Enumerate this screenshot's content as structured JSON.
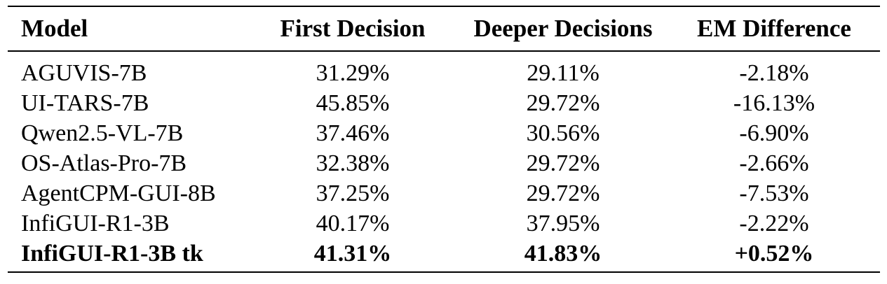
{
  "table": {
    "columns": [
      "Model",
      "First Decision",
      "Deeper Decisions",
      "EM Difference"
    ],
    "rows": [
      {
        "model": "AGUVIS-7B",
        "first": "31.29%",
        "deeper": "29.11%",
        "em": "-2.18%",
        "bold": false
      },
      {
        "model": "UI-TARS-7B",
        "first": "45.85%",
        "deeper": "29.72%",
        "em": "-16.13%",
        "bold": false
      },
      {
        "model": "Qwen2.5-VL-7B",
        "first": "37.46%",
        "deeper": "30.56%",
        "em": "-6.90%",
        "bold": false
      },
      {
        "model": "OS-Atlas-Pro-7B",
        "first": "32.38%",
        "deeper": "29.72%",
        "em": "-2.66%",
        "bold": false
      },
      {
        "model": "AgentCPM-GUI-8B",
        "first": "37.25%",
        "deeper": "29.72%",
        "em": "-7.53%",
        "bold": false
      },
      {
        "model": "InfiGUI-R1-3B",
        "first": "40.17%",
        "deeper": "37.95%",
        "em": "-2.22%",
        "bold": false
      },
      {
        "model": "InfiGUI-R1-3B tk",
        "first": "41.31%",
        "deeper": "41.83%",
        "em": "+0.52%",
        "bold": true
      }
    ]
  }
}
